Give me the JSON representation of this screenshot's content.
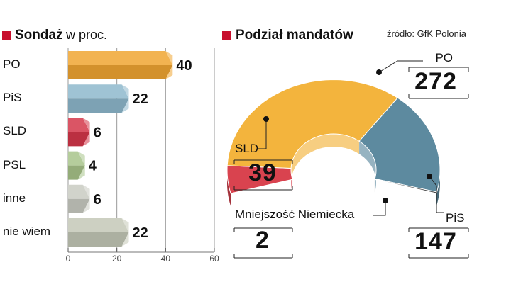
{
  "chart_data": [
    {
      "type": "bar",
      "title": "Sondaż",
      "subtitle": "w proc.",
      "categories": [
        "PO",
        "PiS",
        "SLD",
        "PSL",
        "inne",
        "nie wiem"
      ],
      "values": [
        40,
        22,
        6,
        4,
        6,
        22
      ],
      "colors": [
        "#f0a532",
        "#8eb8cc",
        "#d4374a",
        "#a8c48a",
        "#c9cbc2",
        "#c4c8b7"
      ],
      "xlim": [
        0,
        60
      ],
      "xticks": [
        0,
        20,
        40,
        60
      ],
      "grid": true
    },
    {
      "type": "pie",
      "title": "Podział mandatów",
      "source": "źródło: GfK Polonia",
      "total_shown": "half-donut",
      "slices": [
        {
          "label": "SLD",
          "value": 39,
          "color": "#d9434f"
        },
        {
          "label": "PO",
          "value": 272,
          "color": "#f3b43d"
        },
        {
          "label": "PiS",
          "value": 147,
          "color": "#5d8a9f"
        },
        {
          "label": "Mniejszość Niemiecka",
          "value": 2,
          "color": "#3a3a3a"
        }
      ]
    }
  ]
}
